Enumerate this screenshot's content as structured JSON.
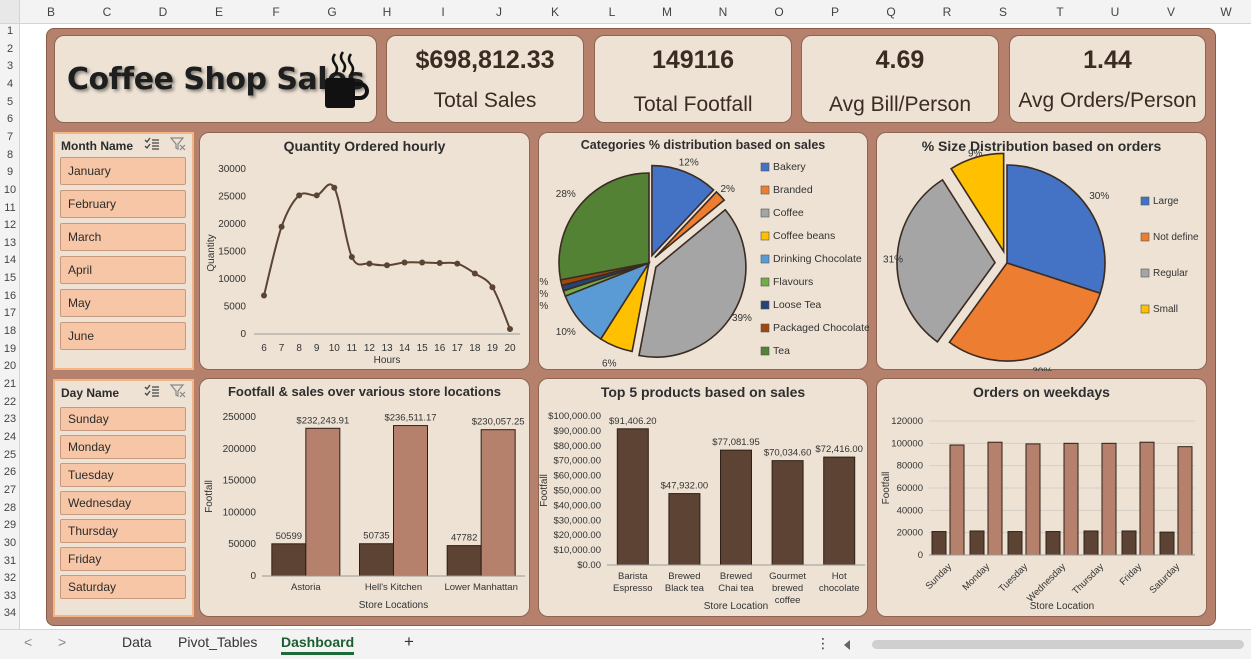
{
  "columns": [
    "B",
    "C",
    "D",
    "E",
    "F",
    "G",
    "H",
    "I",
    "J",
    "K",
    "L",
    "M",
    "N",
    "O",
    "P",
    "Q",
    "R",
    "S",
    "T",
    "U",
    "V",
    "W"
  ],
  "rows": [
    "1",
    "2",
    "3",
    "4",
    "5",
    "6",
    "7",
    "8",
    "9",
    "10",
    "11",
    "12",
    "13",
    "14",
    "15",
    "16",
    "17",
    "18",
    "19",
    "20",
    "21",
    "22",
    "23",
    "24",
    "25",
    "26",
    "27",
    "28",
    "29",
    "30",
    "31",
    "32",
    "33",
    "34"
  ],
  "title": "Coffee Shop Sales",
  "kpis": [
    {
      "value": "$698,812.33",
      "label": "Total Sales"
    },
    {
      "value": "149116",
      "label": "Total Footfall"
    },
    {
      "value": "4.69",
      "label": "Avg Bill/Person"
    },
    {
      "value": "1.44",
      "label": "Avg Orders/Person"
    }
  ],
  "slicers": {
    "month": {
      "header": "Month Name",
      "items": [
        "January",
        "February",
        "March",
        "April",
        "May",
        "June"
      ]
    },
    "day": {
      "header": "Day Name",
      "items": [
        "Sunday",
        "Monday",
        "Tuesday",
        "Wednesday",
        "Thursday",
        "Friday",
        "Saturday"
      ]
    }
  },
  "tabs": {
    "data": "Data",
    "pivot": "Pivot_Tables",
    "dashboard": "Dashboard",
    "add": "+",
    "more": "⋮",
    "prev": "<",
    "next": ">"
  },
  "colors": {
    "dark": "#5c4333",
    "light": "#b5806c",
    "bg": "#ede2d4"
  },
  "chart_data": [
    {
      "id": "hourly",
      "type": "line",
      "title": "Quantity Ordered hourly",
      "xlabel": "Hours",
      "ylabel": "Quantity",
      "x": [
        6,
        7,
        8,
        9,
        10,
        11,
        12,
        13,
        14,
        15,
        16,
        17,
        18,
        19,
        20
      ],
      "values": [
        7000,
        19500,
        25200,
        25200,
        26600,
        14000,
        12800,
        12500,
        13000,
        13000,
        12900,
        12800,
        11000,
        8500,
        900
      ],
      "ylim": [
        0,
        30000
      ],
      "yticks": [
        "0",
        "5000",
        "10000",
        "15000",
        "20000",
        "25000",
        "30000"
      ]
    },
    {
      "id": "categories",
      "type": "pie",
      "title": "Categories % distribution based on sales",
      "slices": [
        {
          "name": "Bakery",
          "value": 12,
          "label": "12%",
          "color": "#4472c4"
        },
        {
          "name": "Branded",
          "value": 2,
          "label": "2%",
          "color": "#ed7d31"
        },
        {
          "name": "Coffee",
          "value": 39,
          "label": "39%",
          "color": "#a5a5a5"
        },
        {
          "name": "Coffee beans",
          "value": 6,
          "label": "6%",
          "color": "#ffc000"
        },
        {
          "name": "Drinking Chocolate",
          "value": 10,
          "label": "10%",
          "color": "#5b9bd5"
        },
        {
          "name": "Flavours",
          "value": 1,
          "label": "1%",
          "color": "#70ad47"
        },
        {
          "name": "Loose Tea",
          "value": 1,
          "label": "1%",
          "color": "#264478"
        },
        {
          "name": "Packaged Chocolate",
          "value": 1,
          "label": "1%",
          "color": "#9e480e"
        },
        {
          "name": "Tea",
          "value": 28,
          "label": "28%",
          "color": "#548235"
        }
      ]
    },
    {
      "id": "sizes",
      "type": "pie",
      "title": "% Size Distribution based on orders",
      "slices": [
        {
          "name": "Large",
          "value": 30,
          "label": "30%",
          "color": "#4472c4"
        },
        {
          "name": "Not define",
          "value": 30,
          "label": "30%",
          "color": "#ed7d31"
        },
        {
          "name": "Regular",
          "value": 31,
          "label": "31%",
          "color": "#a5a5a5"
        },
        {
          "name": "Small",
          "value": 9,
          "label": "9%",
          "color": "#ffc000"
        }
      ]
    },
    {
      "id": "locations",
      "type": "bar",
      "title": "Footfall & sales over various store locations",
      "xlabel": "Store Locations",
      "ylabel": "Footfall",
      "categories": [
        "Astoria",
        "Hell's Kitchen",
        "Lower Manhattan"
      ],
      "series": [
        {
          "values": [
            50599,
            50735,
            47782
          ],
          "labels": [
            "50599",
            "50735",
            "47782"
          ]
        },
        {
          "values": [
            232243.91,
            236511.17,
            230057.25
          ],
          "labels": [
            "$232,243.91",
            "$236,511.17",
            "$230,057.25"
          ]
        }
      ],
      "ylim": [
        0,
        250000
      ],
      "yticks": [
        "0",
        "50000",
        "100000",
        "150000",
        "200000",
        "250000"
      ]
    },
    {
      "id": "products",
      "type": "bar",
      "title": "Top 5 products based on sales",
      "xlabel": "Store Location",
      "ylabel": "Footfall",
      "categories": [
        [
          "Barista",
          "Espresso"
        ],
        [
          "Brewed",
          "Black tea"
        ],
        [
          "Brewed",
          "Chai tea"
        ],
        [
          "Gourmet",
          "brewed",
          "coffee"
        ],
        [
          "Hot",
          "chocolate"
        ]
      ],
      "values": [
        91406.2,
        47932.0,
        77081.95,
        70034.6,
        72416.0
      ],
      "labels": [
        "$91,406.20",
        "$47,932.00",
        "$77,081.95",
        "$70,034.60",
        "$72,416.00"
      ],
      "ylim": [
        0,
        100000
      ],
      "yticks": [
        "$0.00",
        "$10,000.00",
        "$20,000.00",
        "$30,000.00",
        "$40,000.00",
        "$50,000.00",
        "$60,000.00",
        "$70,000.00",
        "$80,000.00",
        "$90,000.00",
        "$100,000.00"
      ]
    },
    {
      "id": "weekdays",
      "type": "bar",
      "title": "Orders on weekdays",
      "xlabel": "Store Location",
      "ylabel": "Footfall",
      "categories": [
        "Sunday",
        "Monday",
        "Tuesday",
        "Wednesday",
        "Thursday",
        "Friday",
        "Saturday"
      ],
      "series": [
        {
          "values": [
            21000,
            21500,
            21000,
            21000,
            21500,
            21500,
            20500
          ]
        },
        {
          "values": [
            98500,
            101000,
            99500,
            100000,
            100000,
            101000,
            97000
          ]
        }
      ],
      "ylim": [
        0,
        120000
      ],
      "yticks": [
        "0",
        "20000",
        "40000",
        "60000",
        "80000",
        "100000",
        "120000"
      ]
    }
  ]
}
